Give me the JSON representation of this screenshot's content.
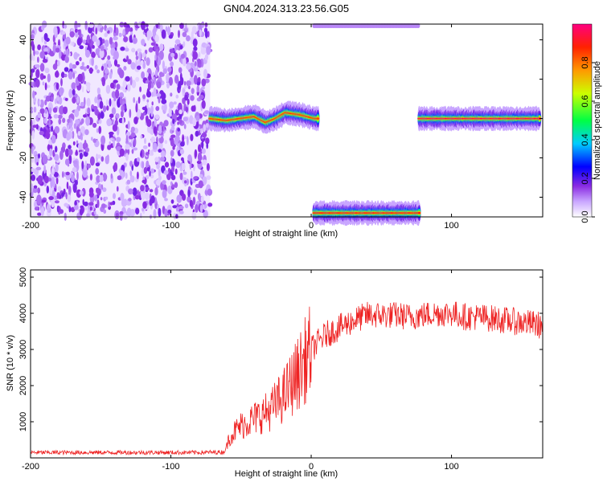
{
  "title": "GN04.2024.313.23.56.G05",
  "chart_data": [
    {
      "type": "heatmap",
      "xlabel": "Height of straight line (km)",
      "ylabel": "Frequency (Hz)",
      "xlim": [
        -200,
        165
      ],
      "ylim": [
        -50,
        48
      ],
      "x_ticks": [
        -200,
        -100,
        0,
        100
      ],
      "y_ticks": [
        -40,
        -20,
        0,
        20,
        40
      ],
      "colorbar": {
        "label": "Normalized spectral amplitude",
        "range": [
          0,
          1
        ],
        "ticks": [
          "0.0",
          "0.2",
          "0.4",
          "0.6",
          "0.8"
        ],
        "tick_values": [
          0.0,
          0.2,
          0.4,
          0.6,
          0.8
        ]
      },
      "regions": [
        {
          "kind": "noise",
          "x_range": [
            -200,
            -72
          ],
          "freq_range": [
            -50,
            48
          ],
          "amplitude": 0.1
        },
        {
          "kind": "signal",
          "x_range": [
            -72,
            5
          ],
          "freq_path": [
            [
              -72,
              0
            ],
            [
              -60,
              -1
            ],
            [
              -50,
              0
            ],
            [
              -40,
              1
            ],
            [
              -32,
              -2
            ],
            [
              -25,
              0
            ],
            [
              -18,
              3
            ],
            [
              -8,
              2
            ],
            [
              3,
              0
            ]
          ],
          "amplitude": 0.85
        },
        {
          "kind": "signal",
          "x_range": [
            2,
            77
          ],
          "freq_path": [
            [
              2,
              -48
            ],
            [
              77,
              -48
            ]
          ],
          "amplitude": 0.9
        },
        {
          "kind": "signal",
          "x_range": [
            77,
            163
          ],
          "freq_path": [
            [
              77,
              0
            ],
            [
              163,
              0
            ]
          ],
          "amplitude": 0.95
        }
      ]
    },
    {
      "type": "line",
      "xlabel": "Height of straight line (km)",
      "ylabel": "SNR (10 * v/v)",
      "xlim": [
        -200,
        165
      ],
      "ylim": [
        0,
        5200
      ],
      "x_ticks": [
        -200,
        -100,
        0,
        100
      ],
      "y_ticks": [
        1000,
        2000,
        3000,
        4000,
        5000
      ],
      "color": "#ee2222",
      "series": [
        {
          "x": [
            -200,
            -180,
            -160,
            -140,
            -120,
            -100,
            -80,
            -62,
            -58,
            -50,
            -40,
            -30,
            -20,
            -10,
            0,
            10,
            20,
            30,
            40,
            50,
            60,
            70,
            80,
            90,
            100,
            110,
            120,
            130,
            140,
            150,
            160,
            165
          ],
          "values": [
            150,
            150,
            150,
            150,
            150,
            150,
            150,
            160,
            600,
            900,
            1100,
            1300,
            1700,
            2300,
            3000,
            3400,
            3600,
            3800,
            3950,
            3950,
            3950,
            3900,
            3950,
            4000,
            4000,
            3900,
            3900,
            3850,
            3800,
            3750,
            3700,
            3650
          ]
        }
      ]
    }
  ]
}
